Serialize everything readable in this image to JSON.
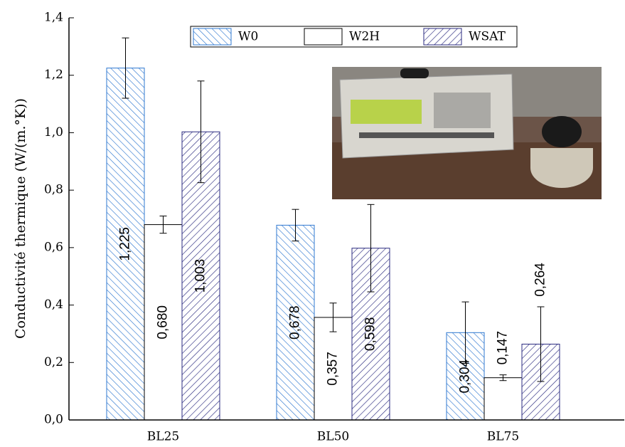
{
  "chart_data": {
    "type": "bar",
    "y_label": "Conductivité thermique (W/(m.°K))",
    "categories": [
      "BL25",
      "BL50",
      "BL75"
    ],
    "ylim": [
      0,
      1.4
    ],
    "yticks": [
      {
        "value": 0,
        "label": "0,0"
      },
      {
        "value": 0.2,
        "label": "0,2"
      },
      {
        "value": 0.4,
        "label": "0,4"
      },
      {
        "value": 0.6,
        "label": "0,6"
      },
      {
        "value": 0.8,
        "label": "0,8"
      },
      {
        "value": 1.0,
        "label": "1,0"
      },
      {
        "value": 1.2,
        "label": "1,2"
      },
      {
        "value": 1.4,
        "label": "1,4"
      }
    ],
    "series": [
      {
        "name": "W0",
        "color": "#2f78d0",
        "pattern": "backslash",
        "values": [
          1.225,
          0.678,
          0.304
        ],
        "value_labels": [
          "1,225",
          "0,678",
          "0,304"
        ],
        "errors": [
          0.105,
          0.055,
          0.107
        ]
      },
      {
        "name": "W2H",
        "color": "#000000",
        "pattern": "none",
        "values": [
          0.68,
          0.357,
          0.147
        ],
        "value_labels": [
          "0,680",
          "0,357",
          "0,147"
        ],
        "errors": [
          0.03,
          0.05,
          0.01
        ]
      },
      {
        "name": "WSAT",
        "color": "#2b2b80",
        "pattern": "slash",
        "values": [
          1.003,
          0.598,
          0.264
        ],
        "value_labels": [
          "1,003",
          "0,598",
          "0,264"
        ],
        "errors": [
          0.177,
          0.152,
          0.13
        ]
      }
    ]
  }
}
